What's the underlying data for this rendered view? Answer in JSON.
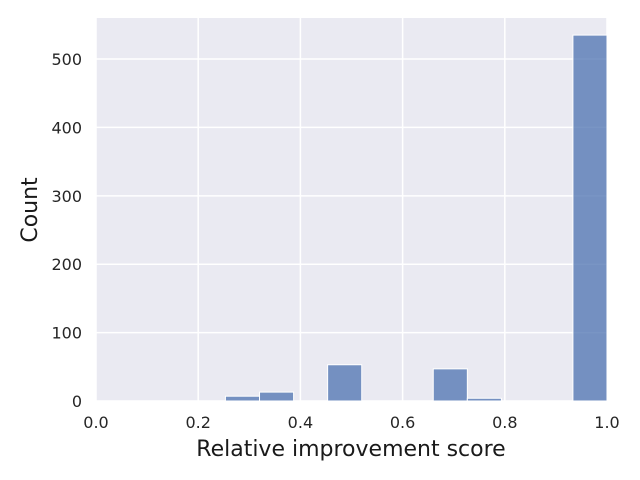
{
  "chart_data": {
    "type": "bar",
    "title": "",
    "xlabel": "Relative improvement score",
    "ylabel": "Count",
    "xlim": [
      0.0,
      1.0
    ],
    "ylim": [
      0,
      560
    ],
    "grid": true,
    "x_ticks": [
      "0.0",
      "0.2",
      "0.4",
      "0.6",
      "0.8",
      "1.0"
    ],
    "y_ticks": [
      "0",
      "100",
      "200",
      "300",
      "400",
      "500"
    ],
    "bin_width": 0.0667,
    "bins": [
      {
        "start": 0.2533,
        "end": 0.32,
        "count": 7
      },
      {
        "start": 0.32,
        "end": 0.3867,
        "count": 13
      },
      {
        "start": 0.4533,
        "end": 0.52,
        "count": 53
      },
      {
        "start": 0.66,
        "end": 0.7267,
        "count": 47
      },
      {
        "start": 0.7267,
        "end": 0.7933,
        "count": 4
      },
      {
        "start": 0.9333,
        "end": 1.0,
        "count": 535
      }
    ],
    "colors": {
      "background": "#eaeaf2",
      "grid": "#ffffff",
      "bar": "#4c72b0"
    }
  }
}
